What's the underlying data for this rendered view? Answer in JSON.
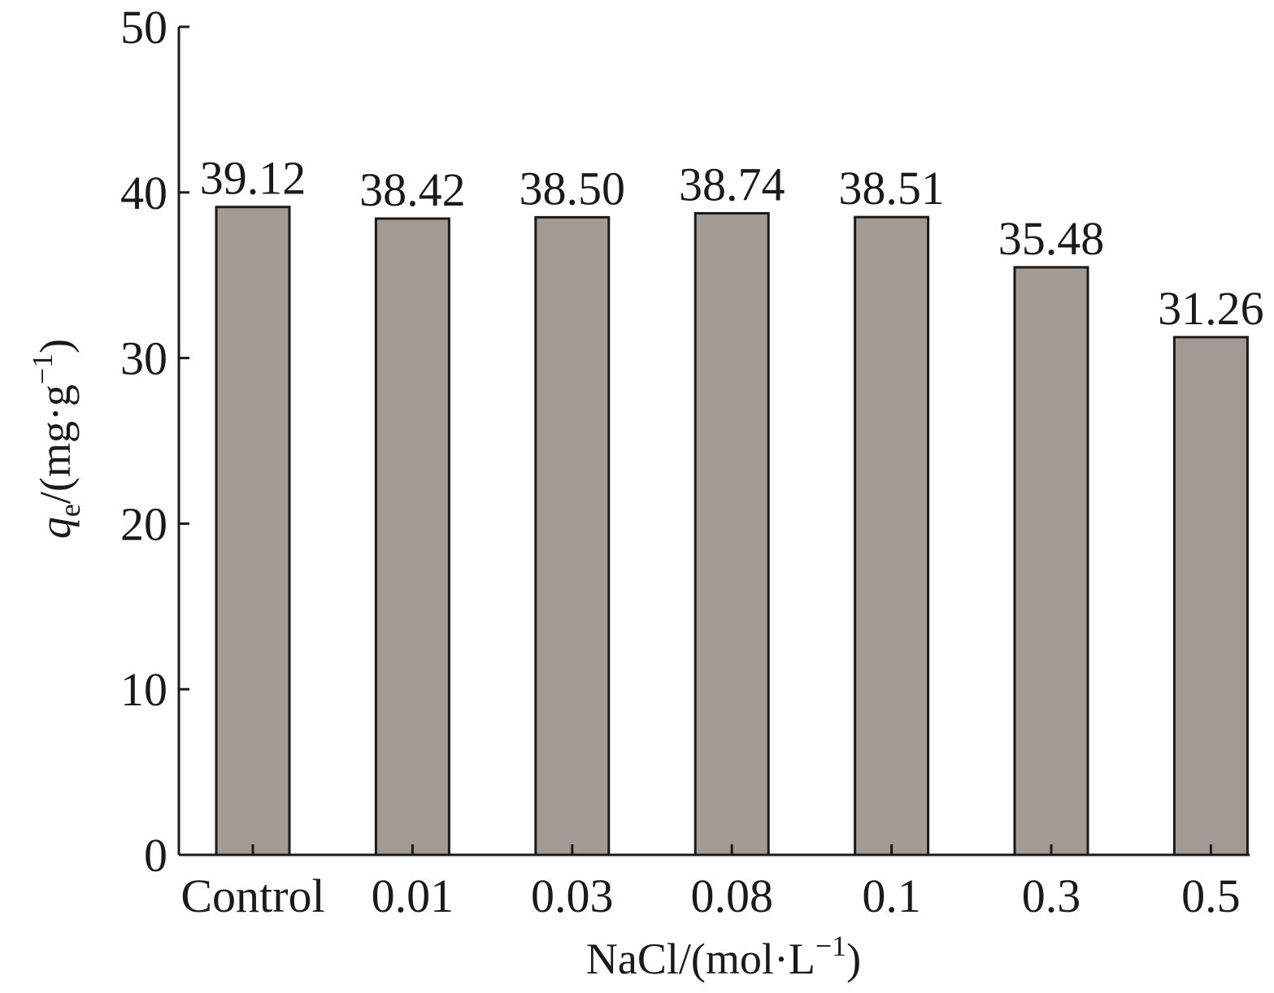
{
  "chart_data": {
    "type": "bar",
    "categories": [
      "Control",
      "0.01",
      "0.03",
      "0.08",
      "0.1",
      "0.3",
      "0.5"
    ],
    "values": [
      39.12,
      38.42,
      38.5,
      38.74,
      38.51,
      35.48,
      31.26
    ],
    "data_labels": [
      "39.12",
      "38.42",
      "38.50",
      "38.74",
      "38.51",
      "35.48",
      "31.26"
    ],
    "xlabel": {
      "main": "NaCl/(mol·L",
      "sup": "−1",
      "close": ")"
    },
    "ylabel": {
      "var": "q",
      "sub": "e",
      "main": "/(mg·g",
      "sup": "−1",
      "close": ")"
    },
    "ylim": [
      0,
      50
    ],
    "yticks": [
      "0",
      "10",
      "20",
      "30",
      "40",
      "50"
    ],
    "grid": false,
    "legend": "none",
    "bar_color": "#a39a94",
    "edge_color": "#1a1a1a"
  }
}
